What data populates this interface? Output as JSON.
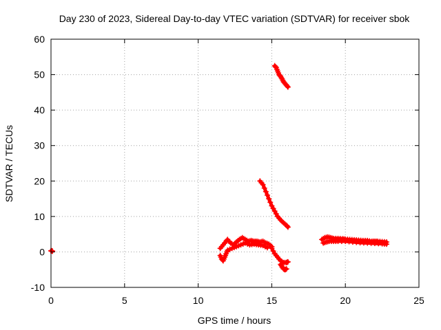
{
  "chart_data": {
    "type": "scatter",
    "title": "Day 230 of 2023, Sidereal Day-to-day VTEC variation (SDTVAR) for receiver sbok",
    "xlabel": "GPS time / hours",
    "ylabel": "SDTVAR / TECUs",
    "xlim": [
      0,
      25
    ],
    "ylim": [
      -10,
      60
    ],
    "x_ticks": [
      0,
      5,
      10,
      15,
      20,
      25
    ],
    "y_ticks": [
      -10,
      0,
      10,
      20,
      30,
      40,
      50,
      60
    ],
    "x_tick_labels": [
      "0",
      "5",
      "10",
      "15",
      "20",
      "25"
    ],
    "y_tick_labels": [
      "-10",
      "0",
      "10",
      "20",
      "30",
      "40",
      "50",
      "60"
    ],
    "grid": true,
    "marker": "plus",
    "color": "#ff0000",
    "series": [
      {
        "name": "SDTVAR",
        "segments": [
          {
            "x": [
              0.0,
              0.05,
              0.1
            ],
            "y": [
              0.3,
              0.3,
              0.2
            ]
          },
          {
            "x": [
              11.5,
              11.7,
              11.9,
              12.0,
              12.2,
              12.4,
              12.6,
              12.8,
              13.0,
              13.2,
              13.4,
              13.6,
              13.8,
              14.0,
              14.2,
              14.4,
              14.6,
              14.8,
              15.0
            ],
            "y": [
              1.0,
              2.0,
              3.0,
              3.5,
              2.5,
              2.0,
              2.8,
              3.5,
              4.0,
              3.5,
              3.0,
              3.2,
              3.0,
              3.0,
              2.8,
              3.0,
              2.5,
              2.2,
              1.5
            ]
          },
          {
            "x": [
              11.5,
              11.6,
              11.7,
              11.8,
              11.9,
              12.0,
              12.3,
              12.6,
              12.9,
              13.2,
              13.5,
              13.8,
              14.1,
              14.4,
              14.7
            ],
            "y": [
              -1.0,
              -2.0,
              -2.5,
              -1.5,
              -0.5,
              0.5,
              1.0,
              1.5,
              2.0,
              2.5,
              2.0,
              2.2,
              2.0,
              1.8,
              1.2
            ]
          },
          {
            "x": [
              15.0,
              15.2,
              15.4,
              15.6,
              15.8,
              16.0,
              16.1
            ],
            "y": [
              1.0,
              -0.5,
              -1.5,
              -2.5,
              -3.0,
              -3.0,
              -2.8
            ]
          },
          {
            "x": [
              15.6,
              15.7,
              15.8,
              15.9,
              16.0
            ],
            "y": [
              -3.5,
              -4.2,
              -4.8,
              -5.0,
              -4.8
            ]
          },
          {
            "x": [
              14.2,
              14.4,
              14.6,
              14.8,
              15.0,
              15.2,
              15.4,
              15.6,
              15.8,
              16.0,
              16.1
            ],
            "y": [
              20.0,
              19.0,
              17.0,
              15.0,
              13.0,
              11.5,
              10.0,
              9.0,
              8.2,
              7.5,
              7.0
            ]
          },
          {
            "x": [
              15.2,
              15.3,
              15.4,
              15.5,
              15.6,
              15.7,
              15.8,
              15.9,
              16.0,
              16.1
            ],
            "y": [
              52.5,
              52.0,
              51.0,
              50.0,
              49.5,
              48.8,
              48.0,
              47.5,
              47.0,
              46.5
            ]
          },
          {
            "x": [
              18.4,
              18.6,
              18.8,
              19.0,
              19.2,
              19.5,
              19.8,
              20.0,
              20.3,
              20.6,
              20.9,
              21.2,
              21.5,
              21.8,
              22.0,
              22.2,
              22.5,
              22.8
            ],
            "y": [
              3.5,
              4.0,
              4.2,
              4.0,
              3.8,
              3.8,
              3.7,
              3.6,
              3.5,
              3.4,
              3.3,
              3.2,
              3.2,
              3.0,
              3.0,
              3.0,
              2.9,
              2.8
            ]
          },
          {
            "x": [
              18.5,
              18.7,
              18.9,
              19.2,
              19.5,
              20.0,
              20.5,
              21.0,
              21.5,
              22.0,
              22.5,
              22.8
            ],
            "y": [
              2.5,
              2.8,
              3.0,
              3.0,
              3.0,
              3.0,
              2.8,
              2.6,
              2.5,
              2.4,
              2.3,
              2.2
            ]
          }
        ]
      }
    ]
  }
}
